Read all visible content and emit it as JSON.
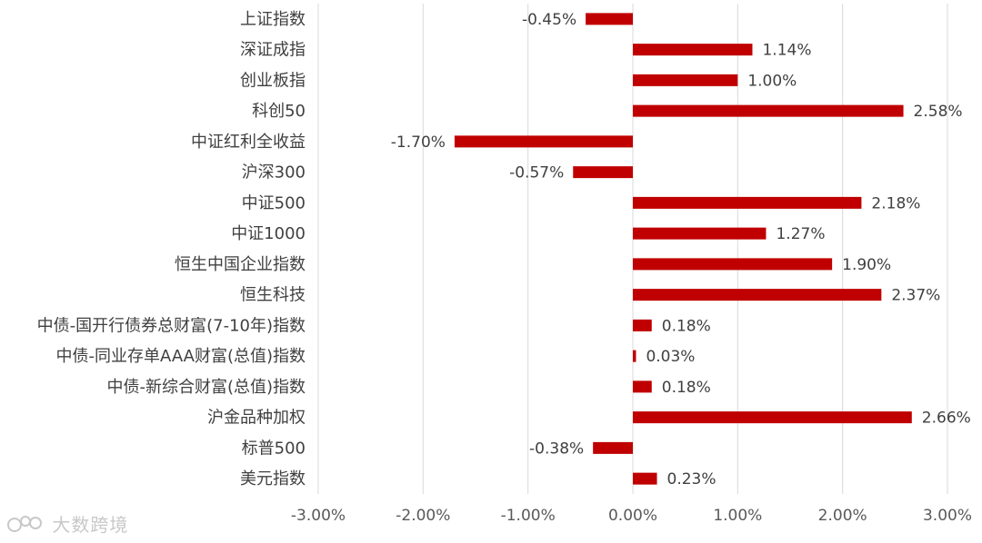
{
  "watermark": "大数跨境",
  "chart_data": {
    "type": "bar",
    "orientation": "horizontal",
    "categories": [
      "上证指数",
      "深证成指",
      "创业板指",
      "科创50",
      "中证红利全收益",
      "沪深300",
      "中证500",
      "中证1000",
      "恒生中国企业指数",
      "恒生科技",
      "中债-国开行债券总财富(7-10年)指数",
      "中债-同业存单AAA财富(总值)指数",
      "中债-新综合财富(总值)指数",
      "沪金品种加权",
      "标普500",
      "美元指数"
    ],
    "values": [
      -0.45,
      1.14,
      1.0,
      2.58,
      -1.7,
      -0.57,
      2.18,
      1.27,
      1.9,
      2.37,
      0.18,
      0.03,
      0.18,
      2.66,
      -0.38,
      0.23
    ],
    "value_labels": [
      "-0.45%",
      "1.14%",
      "1.00%",
      "2.58%",
      "-1.70%",
      "-0.57%",
      "2.18%",
      "1.27%",
      "1.90%",
      "2.37%",
      "0.18%",
      "0.03%",
      "0.18%",
      "2.66%",
      "-0.38%",
      "0.23%"
    ],
    "xlim": [
      -3.0,
      3.0
    ],
    "xticks": [
      -3,
      -2,
      -1,
      0,
      1,
      2,
      3
    ],
    "xtick_labels": [
      "-3.00%",
      "-2.00%",
      "-1.00%",
      "0.00%",
      "1.00%",
      "2.00%",
      "3.00%"
    ],
    "grid": true,
    "bar_color": "#c00000",
    "title": "",
    "xlabel": "",
    "ylabel": ""
  }
}
